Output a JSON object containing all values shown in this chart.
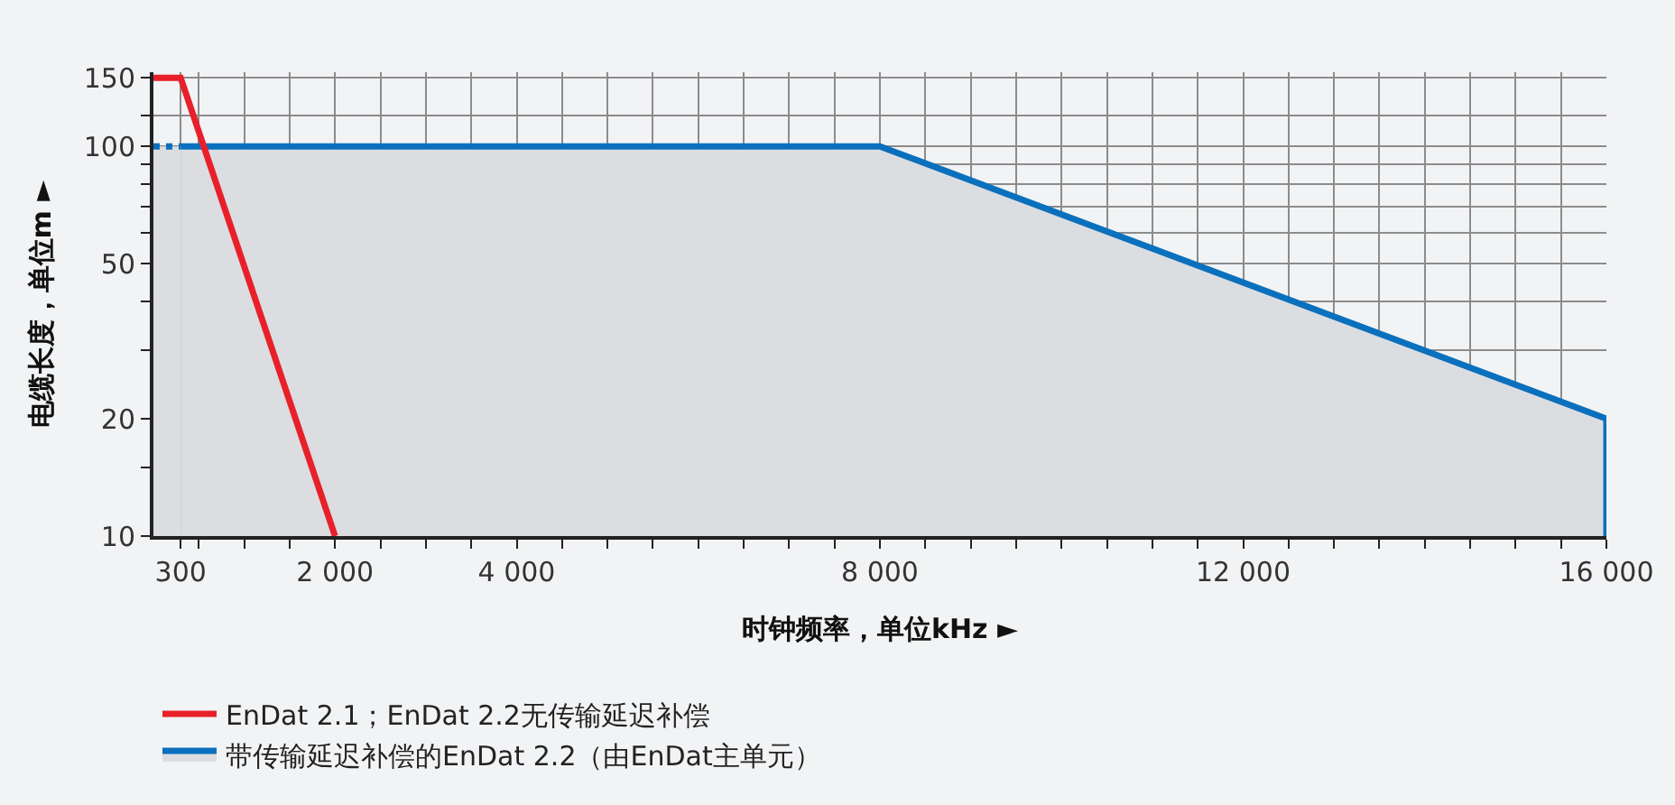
{
  "chart_data": {
    "type": "line",
    "xlabel": "时钟频率，单位kHz ►",
    "ylabel": "电缆长度，单位m ►",
    "xlim": [
      0,
      16000
    ],
    "ylim": [
      10,
      155
    ],
    "log": "y",
    "grid": true,
    "legend": "bottom left",
    "marker": "none",
    "xticks": [
      {
        "value": 300,
        "label": "300"
      },
      {
        "value": 500,
        "label": null
      },
      {
        "value": 1000,
        "label": null
      },
      {
        "value": 1500,
        "label": null
      },
      {
        "value": 2000,
        "label": "2 000"
      },
      {
        "value": 2500,
        "label": null
      },
      {
        "value": 3000,
        "label": null
      },
      {
        "value": 3500,
        "label": null
      },
      {
        "value": 4000,
        "label": "4 000"
      },
      {
        "value": 4500,
        "label": null
      },
      {
        "value": 5000,
        "label": null
      },
      {
        "value": 5500,
        "label": null
      },
      {
        "value": 6000,
        "label": null
      },
      {
        "value": 6500,
        "label": null
      },
      {
        "value": 7000,
        "label": null
      },
      {
        "value": 7500,
        "label": null
      },
      {
        "value": 8000,
        "label": "8 000"
      },
      {
        "value": 8500,
        "label": null
      },
      {
        "value": 9000,
        "label": null
      },
      {
        "value": 9500,
        "label": null
      },
      {
        "value": 10000,
        "label": null
      },
      {
        "value": 10500,
        "label": null
      },
      {
        "value": 11000,
        "label": null
      },
      {
        "value": 11500,
        "label": null
      },
      {
        "value": 12000,
        "label": "12 000"
      },
      {
        "value": 12500,
        "label": null
      },
      {
        "value": 13000,
        "label": null
      },
      {
        "value": 13500,
        "label": null
      },
      {
        "value": 14000,
        "label": null
      },
      {
        "value": 14500,
        "label": null
      },
      {
        "value": 15000,
        "label": null
      },
      {
        "value": 15500,
        "label": null
      },
      {
        "value": 16000,
        "label": "16 000"
      }
    ],
    "yticks": [
      10,
      {
        "value": 15,
        "label": null
      },
      20,
      {
        "value": 30,
        "label": null
      },
      {
        "value": 40,
        "label": null
      },
      50,
      {
        "value": 60,
        "label": null
      },
      {
        "value": 70,
        "label": null
      },
      {
        "value": 80,
        "label": null
      },
      {
        "value": 90,
        "label": null
      },
      100,
      {
        "value": 120,
        "label": null
      },
      150
    ],
    "series": [
      {
        "name": "EnDat 2.1；EnDat 2.2无传输延迟补偿",
        "color": "#e8202a",
        "x": [
          0,
          300,
          2000
        ],
        "values": [
          150,
          150,
          10
        ]
      },
      {
        "name": "带传输延迟补偿的EnDat 2.2（由EnDat主单元）",
        "color": "#0a70be",
        "x": [
          300,
          8000,
          16000,
          16000
        ],
        "values": [
          100,
          100,
          20,
          10
        ],
        "type": "area"
      },
      {
        "color": "#0a70be",
        "x": [
          0,
          300
        ],
        "values": [
          100,
          100
        ],
        "line_style": "dotted",
        "type": "area"
      }
    ]
  }
}
